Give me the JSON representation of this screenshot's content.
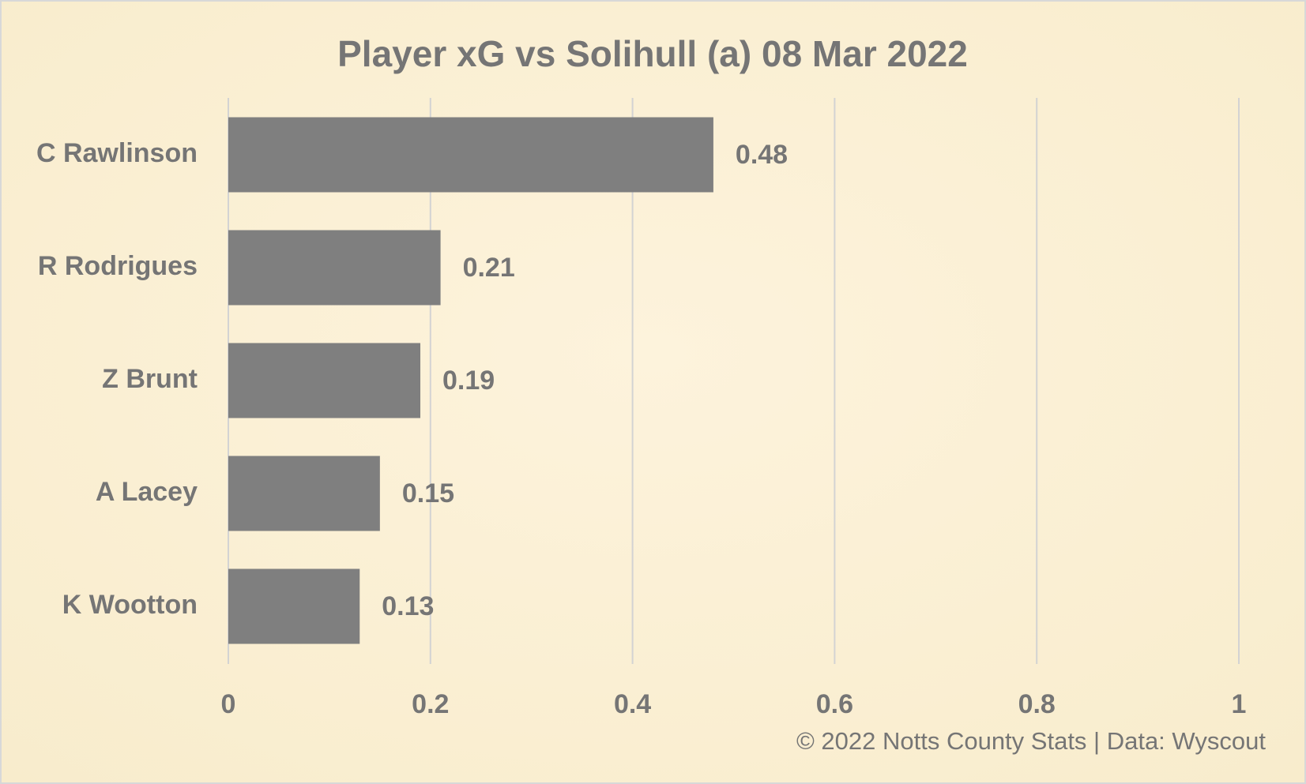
{
  "chart_data": {
    "type": "barh",
    "title": "Player xG vs Solihull (a) 08 Mar 2022",
    "categories": [
      "C Rawlinson",
      "R Rodrigues",
      "Z Brunt",
      "A Lacey",
      "K Wootton"
    ],
    "values": [
      0.48,
      0.21,
      0.19,
      0.15,
      0.13
    ],
    "color": "#7f7f7f",
    "xlim": [
      0,
      1
    ],
    "xticks": [
      0,
      0.2,
      0.4,
      0.6,
      0.8,
      1
    ],
    "grid": true,
    "footer": "© 2022 Notts County Stats | Data: Wyscout"
  }
}
